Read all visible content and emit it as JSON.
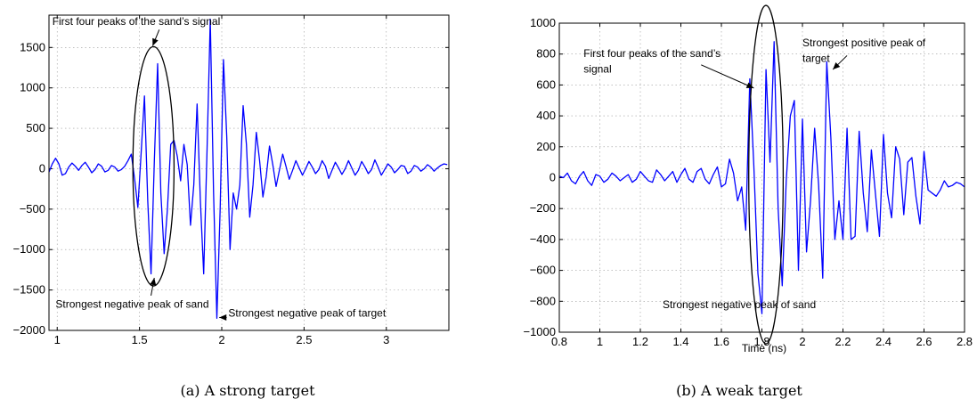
{
  "charts": [
    {
      "type": "line",
      "caption": "(a) A strong target",
      "xlabel": "",
      "ylabel": "",
      "xlim": [
        0.95,
        3.38
      ],
      "ylim": [
        -2000,
        1900
      ],
      "xticks": [
        1,
        1.5,
        2,
        2.5,
        3
      ],
      "xtick_labels": [
        "1",
        "1.5",
        "2",
        "2.5",
        "3"
      ],
      "yticks": [
        -2000,
        -1500,
        -1000,
        -500,
        0,
        500,
        1000,
        1500
      ],
      "ytick_labels": [
        "−2000",
        "−1500",
        "−1000",
        "−500",
        "0",
        "500",
        "1000",
        "1500"
      ],
      "grid": true,
      "color": "#0000ff",
      "series": [
        {
          "x": [
            0.95,
            0.97,
            0.99,
            1.01,
            1.03,
            1.05,
            1.07,
            1.09,
            1.11,
            1.13,
            1.15,
            1.17,
            1.19,
            1.21,
            1.23,
            1.25,
            1.27,
            1.29,
            1.31,
            1.33,
            1.35,
            1.37,
            1.39,
            1.41,
            1.43,
            1.45,
            1.47,
            1.49,
            1.51,
            1.53,
            1.55,
            1.57,
            1.59,
            1.61,
            1.63,
            1.65,
            1.67,
            1.69,
            1.71,
            1.73,
            1.75,
            1.77,
            1.79,
            1.81,
            1.83,
            1.85,
            1.87,
            1.89,
            1.91,
            1.93,
            1.95,
            1.97,
            1.99,
            2.01,
            2.03,
            2.05,
            2.07,
            2.09,
            2.11,
            2.13,
            2.15,
            2.17,
            2.19,
            2.21,
            2.23,
            2.25,
            2.27,
            2.29,
            2.31,
            2.33,
            2.35,
            2.37,
            2.39,
            2.41,
            2.43,
            2.45,
            2.47,
            2.49,
            2.51,
            2.53,
            2.55,
            2.57,
            2.59,
            2.61,
            2.63,
            2.65,
            2.67,
            2.69,
            2.71,
            2.73,
            2.75,
            2.77,
            2.79,
            2.81,
            2.83,
            2.85,
            2.87,
            2.89,
            2.91,
            2.93,
            2.95,
            2.97,
            2.99,
            3.01,
            3.03,
            3.05,
            3.07,
            3.09,
            3.11,
            3.13,
            3.15,
            3.17,
            3.19,
            3.21,
            3.23,
            3.25,
            3.27,
            3.29,
            3.31,
            3.33,
            3.35,
            3.37
          ],
          "y": [
            -40,
            60,
            130,
            60,
            -80,
            -60,
            20,
            70,
            30,
            -20,
            40,
            80,
            20,
            -50,
            -10,
            60,
            30,
            -40,
            -20,
            40,
            20,
            -30,
            -10,
            30,
            100,
            180,
            -120,
            -480,
            200,
            900,
            -400,
            -1300,
            100,
            1300,
            -300,
            -1050,
            -500,
            300,
            350,
            150,
            -150,
            300,
            50,
            -700,
            -200,
            800,
            -400,
            -1300,
            200,
            1850,
            -300,
            -1850,
            -500,
            1350,
            400,
            -1000,
            -300,
            -500,
            -200,
            780,
            300,
            -600,
            -200,
            450,
            100,
            -350,
            -100,
            280,
            50,
            -220,
            -20,
            180,
            30,
            -130,
            -20,
            100,
            10,
            -80,
            0,
            90,
            20,
            -60,
            -10,
            100,
            30,
            -120,
            -20,
            80,
            10,
            -70,
            0,
            100,
            10,
            -80,
            -20,
            90,
            20,
            -60,
            -10,
            110,
            20,
            -80,
            -10,
            60,
            20,
            -50,
            -10,
            40,
            30,
            -60,
            -30,
            40,
            20,
            -30,
            0,
            50,
            20,
            -30,
            10,
            40,
            60,
            50
          ]
        }
      ],
      "ellipse": {
        "cx": 1.585,
        "cy": 30,
        "rx": 0.125,
        "ry": 1480
      },
      "annotations": [
        {
          "text": "First four peaks of the sand’s signal",
          "x": 0.97,
          "y": 1780,
          "ax": 1.58,
          "ay": 1520,
          "atx": 1.62,
          "aty": 1720
        },
        {
          "text": "Strongest negative peak of sand",
          "x": 0.99,
          "y": -1720,
          "ax": 1.59,
          "ay": -1350,
          "atx": 1.57,
          "aty": -1570
        },
        {
          "text": "Strongest negative peak of target",
          "x": 2.04,
          "y": -1830,
          "ax": 1.985,
          "ay": -1840,
          "atx": 2.03,
          "aty": -1840
        }
      ]
    },
    {
      "type": "line",
      "caption": "(b) A weak target",
      "xlabel": "Time (ns)",
      "ylabel": "",
      "xlim": [
        0.8,
        2.8
      ],
      "ylim": [
        -1000,
        1000
      ],
      "xticks": [
        0.8,
        1,
        1.2,
        1.4,
        1.6,
        1.8,
        2,
        2.2,
        2.4,
        2.6,
        2.8
      ],
      "xtick_labels": [
        "0.8",
        "1",
        "1.2",
        "1.4",
        "1.6",
        "1.8",
        "2",
        "2.2",
        "2.4",
        "2.6",
        "2.8"
      ],
      "yticks": [
        -1000,
        -800,
        -600,
        -400,
        -200,
        0,
        200,
        400,
        600,
        800,
        1000
      ],
      "ytick_labels": [
        "−1000",
        "−800",
        "−600",
        "−400",
        "−200",
        "0",
        "200",
        "400",
        "600",
        "800",
        "1000"
      ],
      "grid": true,
      "color": "#0000ff",
      "series": [
        {
          "x": [
            0.8,
            0.82,
            0.84,
            0.86,
            0.88,
            0.9,
            0.92,
            0.94,
            0.96,
            0.98,
            1.0,
            1.02,
            1.04,
            1.06,
            1.08,
            1.1,
            1.12,
            1.14,
            1.16,
            1.18,
            1.2,
            1.22,
            1.24,
            1.26,
            1.28,
            1.3,
            1.32,
            1.34,
            1.36,
            1.38,
            1.4,
            1.42,
            1.44,
            1.46,
            1.48,
            1.5,
            1.52,
            1.54,
            1.56,
            1.58,
            1.6,
            1.62,
            1.64,
            1.66,
            1.68,
            1.7,
            1.72,
            1.74,
            1.76,
            1.78,
            1.8,
            1.82,
            1.84,
            1.86,
            1.88,
            1.9,
            1.92,
            1.94,
            1.96,
            1.98,
            2.0,
            2.02,
            2.04,
            2.06,
            2.08,
            2.1,
            2.12,
            2.14,
            2.16,
            2.18,
            2.2,
            2.22,
            2.24,
            2.26,
            2.28,
            2.3,
            2.32,
            2.34,
            2.36,
            2.38,
            2.4,
            2.42,
            2.44,
            2.46,
            2.48,
            2.5,
            2.52,
            2.54,
            2.56,
            2.58,
            2.6,
            2.62,
            2.64,
            2.66,
            2.68,
            2.7,
            2.72,
            2.74,
            2.76,
            2.78,
            2.8
          ],
          "y": [
            10,
            0,
            30,
            -20,
            -40,
            10,
            40,
            -20,
            -50,
            20,
            10,
            -30,
            -10,
            30,
            10,
            -20,
            0,
            20,
            -30,
            -10,
            40,
            10,
            -20,
            -30,
            50,
            20,
            -20,
            10,
            40,
            -30,
            20,
            60,
            -10,
            -30,
            40,
            60,
            -10,
            -40,
            20,
            70,
            -60,
            -40,
            120,
            30,
            -150,
            -60,
            -340,
            640,
            80,
            -620,
            -880,
            700,
            100,
            880,
            -200,
            -700,
            -20,
            400,
            500,
            -600,
            380,
            -480,
            -150,
            320,
            -50,
            -650,
            750,
            260,
            -400,
            -150,
            -400,
            320,
            -400,
            -380,
            300,
            -100,
            -350,
            180,
            -100,
            -380,
            280,
            -100,
            -260,
            200,
            120,
            -240,
            100,
            130,
            -120,
            -300,
            170,
            -80,
            -100,
            -120,
            -80,
            -20,
            -60,
            -50,
            -30,
            -40,
            -60
          ]
        }
      ],
      "ellipse": {
        "cx": 1.82,
        "cy": 20,
        "rx": 0.085,
        "ry": 1095
      },
      "annotations": [
        {
          "text": "First four peaks of the sand’s",
          "x": 0.92,
          "y": 780,
          "ax": 1.76,
          "ay": 580,
          "atx": 1.5,
          "aty": 730
        },
        {
          "text": "signal",
          "x": 0.92,
          "y": 680,
          "ax": null,
          "ay": null,
          "atx": null,
          "aty": null
        },
        {
          "text": "Strongest positive peak of",
          "x": 2.0,
          "y": 850,
          "ax": 2.15,
          "ay": 700,
          "atx": 2.22,
          "aty": 790
        },
        {
          "text": "target",
          "x": 2.0,
          "y": 750,
          "ax": null,
          "ay": null,
          "atx": null,
          "aty": null
        },
        {
          "text": "Strongest negative peak of sand",
          "x": 1.31,
          "y": -845,
          "ax": null,
          "ay": null,
          "atx": null,
          "aty": null
        }
      ]
    }
  ]
}
